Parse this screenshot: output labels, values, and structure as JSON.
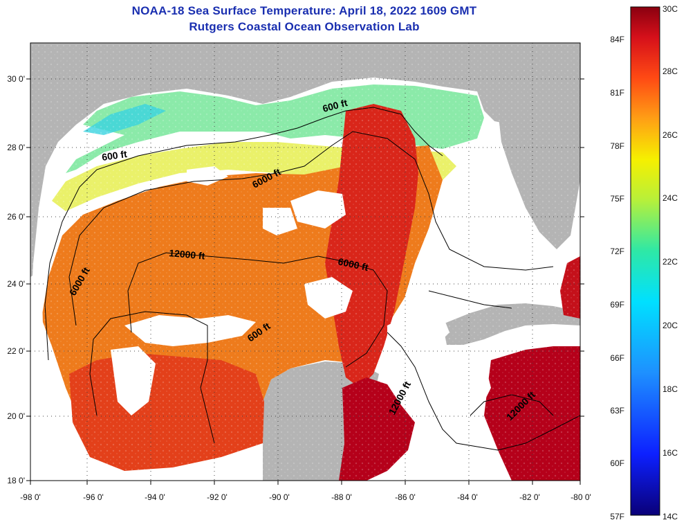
{
  "header": {
    "title": "NOAA-18 Sea Surface Temperature:  April 18, 2022 1609 GMT",
    "subtitle": "Rutgers Coastal Ocean Observation Lab"
  },
  "map": {
    "lon_ticks": [
      "-98 0'",
      "-96 0'",
      "-94 0'",
      "-92 0'",
      "-90 0'",
      "-88 0'",
      "-86 0'",
      "-84 0'",
      "-82 0'",
      "-80 0'"
    ],
    "lat_ticks": [
      "30 0'",
      "28 0'",
      "26 0'",
      "24 0'",
      "22 0'",
      "20 0'",
      "18 0'"
    ],
    "contour_labels": [
      "600 ft",
      "600 ft",
      "6000 ft",
      "12000 ft",
      "6000 ft",
      "6000 ft",
      "600 ft",
      "12000 ft",
      "12000 ft"
    ]
  },
  "colorbar": {
    "fahrenheit": [
      "84F",
      "81F",
      "78F",
      "75F",
      "72F",
      "69F",
      "66F",
      "63F",
      "60F",
      "57F"
    ],
    "celsius": [
      "30C",
      "28C",
      "26C",
      "24C",
      "22C",
      "20C",
      "18C",
      "16C",
      "14C"
    ]
  },
  "colors": {
    "title": "#1a2fb0",
    "land": "#b4b4b4",
    "cloud": "#ffffff",
    "warm": "#e4291a",
    "hot": "#b5001a"
  }
}
